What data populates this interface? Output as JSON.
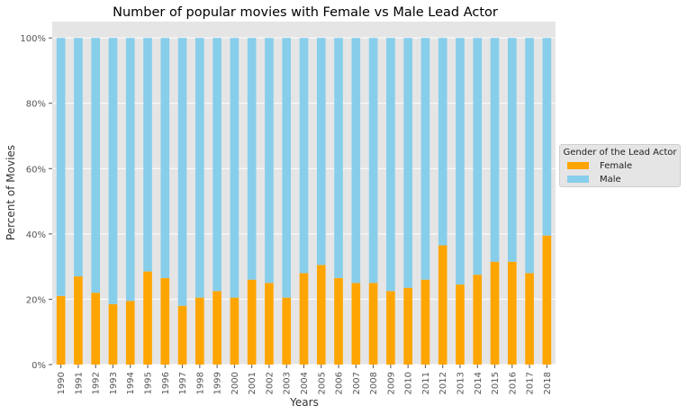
{
  "chart_data": {
    "type": "bar",
    "stacked": true,
    "title": "Number of popular movies with Female vs Male Lead Actor",
    "xlabel": "Years",
    "ylabel": "Percent of Movies",
    "ylim": [
      0,
      1.05
    ],
    "y_ticks": [
      0,
      0.2,
      0.4,
      0.6,
      0.8,
      1.0
    ],
    "y_tick_labels": [
      "0%",
      "20%",
      "40%",
      "60%",
      "80%",
      "100%"
    ],
    "grid": true,
    "legend_title": "Gender of the Lead Actor",
    "legend_position": "right",
    "categories": [
      "1990",
      "1991",
      "1992",
      "1993",
      "1994",
      "1995",
      "1996",
      "1997",
      "1998",
      "1999",
      "2000",
      "2001",
      "2002",
      "2003",
      "2004",
      "2005",
      "2006",
      "2007",
      "2008",
      "2009",
      "2010",
      "2011",
      "2012",
      "2013",
      "2014",
      "2015",
      "2016",
      "2017",
      "2018"
    ],
    "series": [
      {
        "name": "Female",
        "color": "#ffa500",
        "values": [
          0.21,
          0.27,
          0.22,
          0.185,
          0.195,
          0.285,
          0.265,
          0.18,
          0.205,
          0.225,
          0.205,
          0.26,
          0.25,
          0.205,
          0.28,
          0.305,
          0.265,
          0.25,
          0.25,
          0.225,
          0.235,
          0.26,
          0.365,
          0.245,
          0.275,
          0.315,
          0.315,
          0.28,
          0.395
        ]
      },
      {
        "name": "Male",
        "color": "#87ceeb",
        "values": [
          0.79,
          0.73,
          0.78,
          0.815,
          0.805,
          0.715,
          0.735,
          0.82,
          0.795,
          0.775,
          0.795,
          0.74,
          0.75,
          0.795,
          0.72,
          0.695,
          0.735,
          0.75,
          0.75,
          0.775,
          0.765,
          0.74,
          0.635,
          0.755,
          0.725,
          0.685,
          0.685,
          0.72,
          0.605
        ]
      }
    ]
  }
}
